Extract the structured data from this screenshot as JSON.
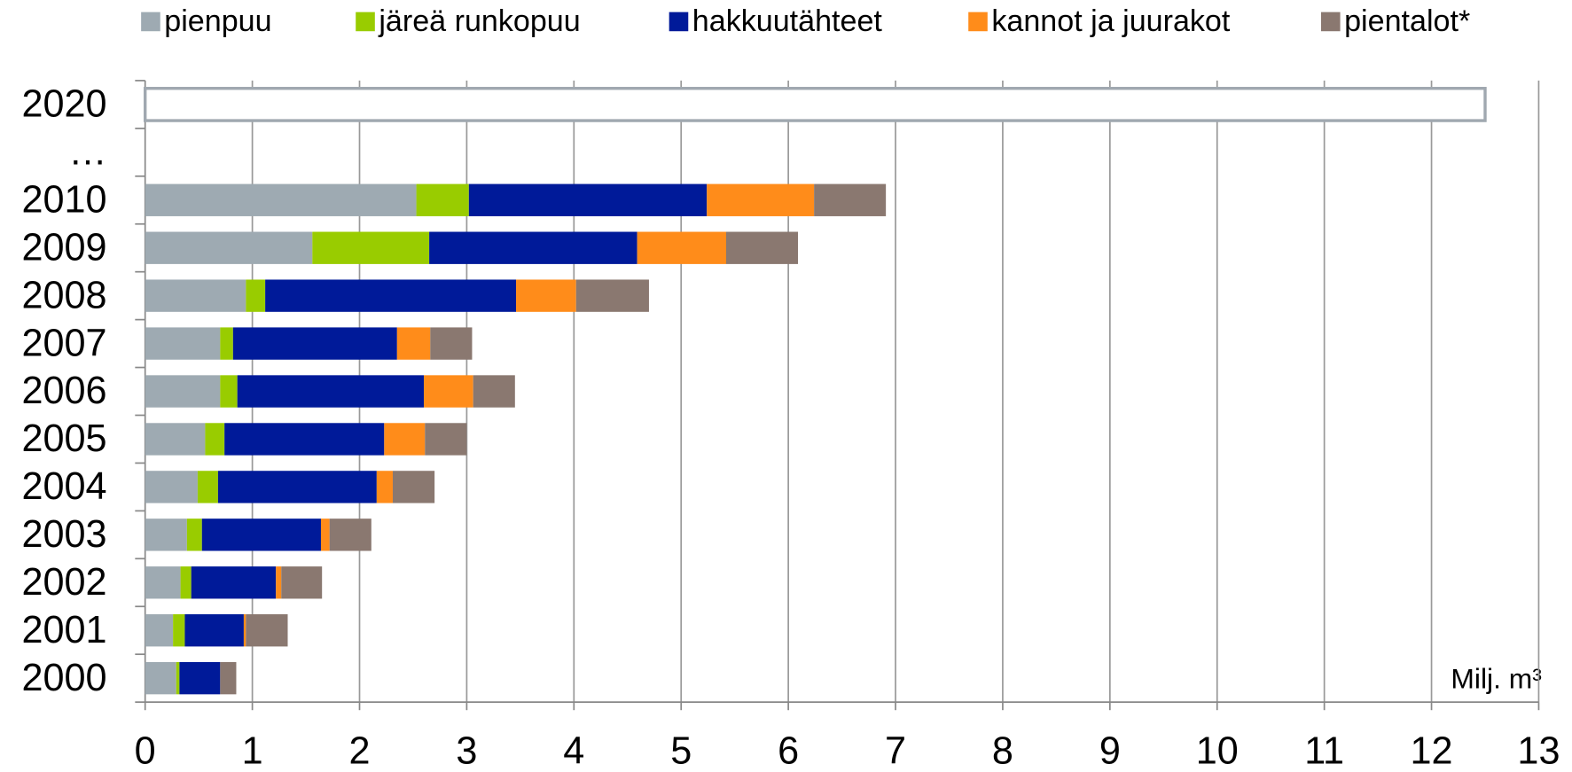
{
  "chart_data": {
    "type": "stacked-barh",
    "categories": [
      "2020",
      "…",
      "2010",
      "2009",
      "2008",
      "2007",
      "2006",
      "2005",
      "2004",
      "2003",
      "2002",
      "2001",
      "2000"
    ],
    "series": [
      {
        "name": "pienpuu",
        "color": "#9eaab2",
        "values": [
          null,
          null,
          2.53,
          1.56,
          0.94,
          0.7,
          0.7,
          0.56,
          0.49,
          0.39,
          0.33,
          0.26,
          0.29
        ]
      },
      {
        "name": "järeä runkopuu",
        "color": "#99cc00",
        "values": [
          null,
          null,
          0.49,
          1.09,
          0.18,
          0.12,
          0.16,
          0.18,
          0.19,
          0.14,
          0.1,
          0.11,
          0.03
        ]
      },
      {
        "name": "hakkuutähteet",
        "color": "#001a99",
        "values": [
          null,
          null,
          2.22,
          1.94,
          2.34,
          1.53,
          1.74,
          1.49,
          1.48,
          1.11,
          0.79,
          0.55,
          0.38
        ]
      },
      {
        "name": "kannot ja juurakot",
        "color": "#ff8c1a",
        "values": [
          null,
          null,
          1.0,
          0.83,
          0.56,
          0.31,
          0.46,
          0.38,
          0.15,
          0.08,
          0.05,
          0.02,
          0
        ]
      },
      {
        "name": "pientalot*",
        "color": "#8a7870",
        "values": [
          null,
          null,
          0.67,
          0.67,
          0.68,
          0.39,
          0.39,
          0.39,
          0.39,
          0.39,
          0.38,
          0.39,
          0.15
        ]
      }
    ],
    "target_values": [
      12.5,
      null,
      null,
      null,
      null,
      null,
      null,
      null,
      null,
      null,
      null,
      null,
      null
    ],
    "target_color": "#a0a8b0",
    "x_unit_label": "Milj. m³",
    "xlim": [
      0,
      13
    ],
    "xticks": [
      0,
      1,
      2,
      3,
      4,
      5,
      6,
      7,
      8,
      9,
      10,
      11,
      12,
      13
    ],
    "grid": true,
    "legend": "top"
  }
}
